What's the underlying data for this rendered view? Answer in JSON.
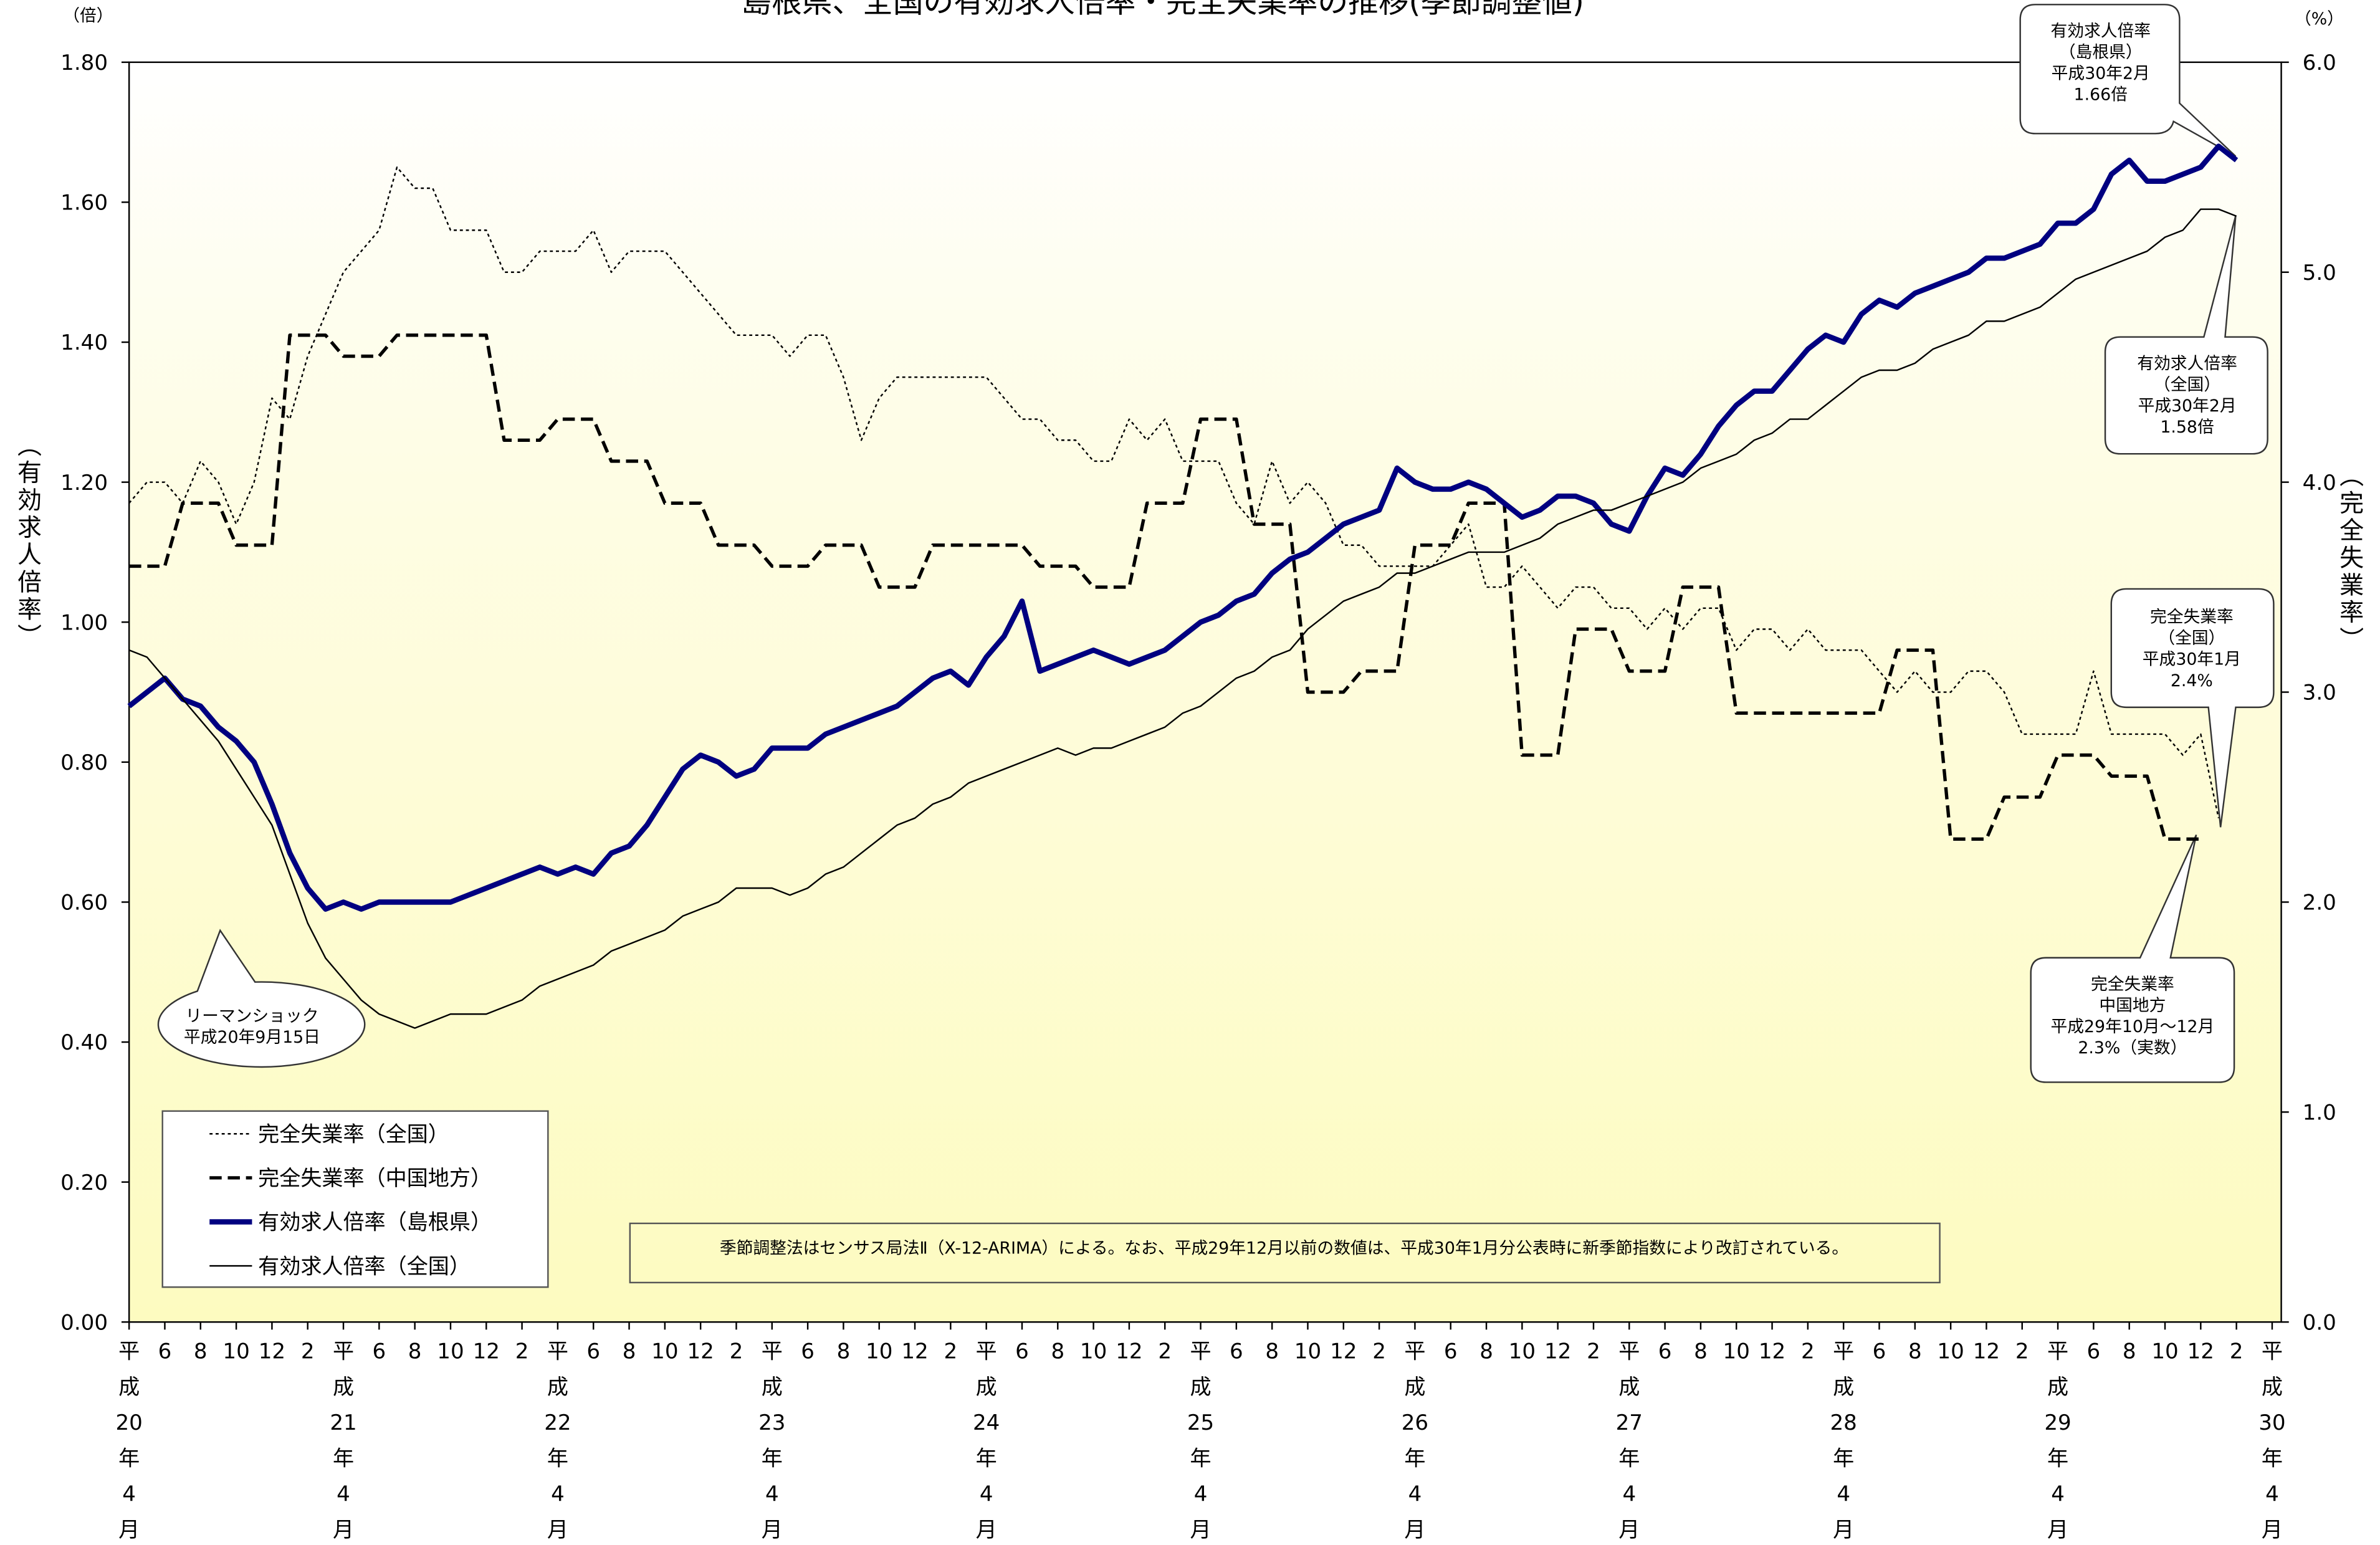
{
  "chart_data": {
    "type": "line",
    "title": "島根県、全国の有効求人倍率・完全失業率の推移(季節調整値)",
    "y_unit": "（倍）",
    "y2_unit": "（%）",
    "ylabel": "（有効求人倍率）",
    "y2label": "（完全失業率）",
    "note": "季節調整法はセンサス局法Ⅱ（X-12-ARIMA）による。なお、平成29年12月以前の数値は、平成30年1月分公表時に新季節指数により改訂されている。",
    "annotations": [
      {
        "lines": [
          "有効求人倍率",
          "（島根県）",
          "平成30年2月",
          "1.66倍"
        ]
      },
      {
        "lines": [
          "有効求人倍率",
          "（全国）",
          "平成30年2月",
          "1.58倍"
        ]
      },
      {
        "lines": [
          "完全失業率",
          "（全国）",
          "平成30年1月",
          "2.4%"
        ]
      },
      {
        "lines": [
          "完全失業率",
          "中国地方",
          "平成29年10月～12月",
          "2.3%（実数）"
        ]
      },
      {
        "lines": [
          "リーマンショック",
          "平成20年9月15日"
        ]
      }
    ],
    "categories": [
      "平成20年4月",
      null,
      "6",
      null,
      "8",
      null,
      "10",
      null,
      "12",
      null,
      "2",
      null,
      "平成21年4月",
      null,
      "6",
      null,
      "8",
      null,
      "10",
      null,
      "12",
      null,
      "2",
      null,
      "平成22年4月",
      null,
      "6",
      null,
      "8",
      null,
      "10",
      null,
      "12",
      null,
      "2",
      null,
      "平成23年4月",
      null,
      "6",
      null,
      "8",
      null,
      "10",
      null,
      "12",
      null,
      "2",
      null,
      "平成24年4月",
      null,
      "6",
      null,
      "8",
      null,
      "10",
      null,
      "12",
      null,
      "2",
      null,
      "平成25年4月",
      null,
      "6",
      null,
      "8",
      null,
      "10",
      null,
      "12",
      null,
      "2",
      null,
      "平成26年4月",
      null,
      "6",
      null,
      "8",
      null,
      "10",
      null,
      "12",
      null,
      "2",
      null,
      "平成27年4月",
      null,
      "6",
      null,
      "8",
      null,
      "10",
      null,
      "12",
      null,
      "2",
      null,
      "平成28年4月",
      null,
      "6",
      null,
      "8",
      null,
      "10",
      null,
      "12",
      null,
      "2",
      null,
      "平成29年4月",
      null,
      "6",
      null,
      "8",
      null,
      "10",
      null,
      "12",
      null,
      "2",
      null,
      "平成30年4月"
    ],
    "ylim": [
      0,
      1.8
    ],
    "yticks": [
      {
        "value": 0,
        "label": "0.00"
      },
      {
        "value": 0.2,
        "label": "0.20"
      },
      {
        "value": 0.4,
        "label": "0.40"
      },
      {
        "value": 0.6,
        "label": "0.60"
      },
      {
        "value": 0.8,
        "label": "0.80"
      },
      {
        "value": 1.0,
        "label": "1.00"
      },
      {
        "value": 1.2,
        "label": "1.20"
      },
      {
        "value": 1.4,
        "label": "1.40"
      },
      {
        "value": 1.6,
        "label": "1.60"
      },
      {
        "value": 1.8,
        "label": "1.80"
      }
    ],
    "y2lim": [
      0,
      6
    ],
    "y2ticks": [
      {
        "value": 0,
        "label": "0.0"
      },
      {
        "value": 1,
        "label": "1.0"
      },
      {
        "value": 2,
        "label": "2.0"
      },
      {
        "value": 3,
        "label": "3.0"
      },
      {
        "value": 4,
        "label": "4.0"
      },
      {
        "value": 5,
        "label": "5.0"
      },
      {
        "value": 6,
        "label": "6.0"
      }
    ],
    "grid": "x-yearly",
    "legend": "lower left",
    "series": [
      {
        "name": "完全失業率（全国）",
        "color": "#000000",
        "style": "dotted",
        "axis": "y2",
        "values": [
          3.9,
          4.0,
          4.0,
          3.9,
          4.1,
          4.0,
          3.8,
          4.0,
          4.4,
          4.3,
          4.6,
          4.8,
          5.0,
          5.1,
          5.2,
          5.5,
          5.4,
          5.4,
          5.2,
          5.2,
          5.2,
          5.0,
          5.0,
          5.1,
          5.1,
          5.1,
          5.2,
          5.0,
          5.1,
          5.1,
          5.1,
          5.0,
          4.9,
          4.8,
          4.7,
          4.7,
          4.7,
          4.6,
          4.7,
          4.7,
          4.5,
          4.2,
          4.4,
          4.5,
          4.5,
          4.5,
          4.5,
          4.5,
          4.5,
          4.4,
          4.3,
          4.3,
          4.2,
          4.2,
          4.1,
          4.1,
          4.3,
          4.2,
          4.3,
          4.1,
          4.1,
          4.1,
          3.9,
          3.8,
          4.1,
          3.9,
          4.0,
          3.9,
          3.7,
          3.7,
          3.6,
          3.6,
          3.6,
          3.6,
          3.7,
          3.8,
          3.5,
          3.5,
          3.6,
          3.5,
          3.4,
          3.5,
          3.5,
          3.4,
          3.4,
          3.3,
          3.4,
          3.3,
          3.4,
          3.4,
          3.2,
          3.3,
          3.3,
          3.2,
          3.3,
          3.2,
          3.2,
          3.2,
          3.1,
          3.0,
          3.1,
          3.0,
          3.0,
          3.1,
          3.1,
          3.0,
          2.8,
          2.8,
          2.8,
          2.8,
          3.1,
          2.8,
          2.8,
          2.8,
          2.8,
          2.7,
          2.8,
          2.4,
          null,
          null,
          null
        ]
      },
      {
        "name": "完全失業率（中国地方）",
        "color": "#000000",
        "style": "dashed",
        "axis": "y2",
        "values": [
          3.6,
          3.6,
          3.6,
          3.9,
          3.9,
          3.9,
          3.7,
          3.7,
          3.7,
          4.7,
          4.7,
          4.7,
          4.6,
          4.6,
          4.6,
          4.7,
          4.7,
          4.7,
          4.7,
          4.7,
          4.7,
          4.2,
          4.2,
          4.2,
          4.3,
          4.3,
          4.3,
          4.1,
          4.1,
          4.1,
          3.9,
          3.9,
          3.9,
          3.7,
          3.7,
          3.7,
          3.6,
          3.6,
          3.6,
          3.7,
          3.7,
          3.7,
          3.5,
          3.5,
          3.5,
          3.7,
          3.7,
          3.7,
          3.7,
          3.7,
          3.7,
          3.6,
          3.6,
          3.6,
          3.5,
          3.5,
          3.5,
          3.9,
          3.9,
          3.9,
          4.3,
          4.3,
          4.3,
          3.8,
          3.8,
          3.8,
          3.0,
          3.0,
          3.0,
          3.1,
          3.1,
          3.1,
          3.7,
          3.7,
          3.7,
          3.9,
          3.9,
          3.9,
          2.7,
          2.7,
          2.7,
          3.3,
          3.3,
          3.3,
          3.1,
          3.1,
          3.1,
          3.5,
          3.5,
          3.5,
          2.9,
          2.9,
          2.9,
          2.9,
          2.9,
          2.9,
          2.9,
          2.9,
          2.9,
          3.2,
          3.2,
          3.2,
          2.3,
          2.3,
          2.3,
          2.5,
          2.5,
          2.5,
          2.7,
          2.7,
          2.7,
          2.6,
          2.6,
          2.6,
          2.3,
          2.3,
          2.3,
          null,
          null,
          null,
          null
        ]
      },
      {
        "name": "有効求人倍率（島根県）",
        "color": "#000080",
        "style": "bold",
        "axis": "y",
        "values": [
          0.88,
          0.9,
          0.92,
          0.89,
          0.88,
          0.85,
          0.83,
          0.8,
          0.74,
          0.67,
          0.62,
          0.59,
          0.6,
          0.59,
          0.6,
          0.6,
          0.6,
          0.6,
          0.6,
          0.61,
          0.62,
          0.63,
          0.64,
          0.65,
          0.64,
          0.65,
          0.64,
          0.67,
          0.68,
          0.71,
          0.75,
          0.79,
          0.81,
          0.8,
          0.78,
          0.79,
          0.82,
          0.82,
          0.82,
          0.84,
          0.85,
          0.86,
          0.87,
          0.88,
          0.9,
          0.92,
          0.93,
          0.91,
          0.95,
          0.98,
          1.03,
          0.93,
          0.94,
          0.95,
          0.96,
          0.95,
          0.94,
          0.95,
          0.96,
          0.98,
          1.0,
          1.01,
          1.03,
          1.04,
          1.07,
          1.09,
          1.1,
          1.12,
          1.14,
          1.15,
          1.16,
          1.22,
          1.2,
          1.19,
          1.19,
          1.2,
          1.19,
          1.17,
          1.15,
          1.16,
          1.18,
          1.18,
          1.17,
          1.14,
          1.13,
          1.18,
          1.22,
          1.21,
          1.24,
          1.28,
          1.31,
          1.33,
          1.33,
          1.36,
          1.39,
          1.41,
          1.4,
          1.44,
          1.46,
          1.45,
          1.47,
          1.48,
          1.49,
          1.5,
          1.52,
          1.52,
          1.53,
          1.54,
          1.57,
          1.57,
          1.59,
          1.64,
          1.66,
          1.63,
          1.63,
          1.64,
          1.65,
          1.68,
          1.66,
          null,
          null
        ]
      },
      {
        "name": "有効求人倍率（全国）",
        "color": "#000000",
        "style": "thin",
        "axis": "y",
        "values": [
          0.96,
          0.95,
          0.92,
          0.89,
          0.86,
          0.83,
          0.79,
          0.75,
          0.71,
          0.64,
          0.57,
          0.52,
          0.49,
          0.46,
          0.44,
          0.43,
          0.42,
          0.43,
          0.44,
          0.44,
          0.44,
          0.45,
          0.46,
          0.48,
          0.49,
          0.5,
          0.51,
          0.53,
          0.54,
          0.55,
          0.56,
          0.58,
          0.59,
          0.6,
          0.62,
          0.62,
          0.62,
          0.61,
          0.62,
          0.64,
          0.65,
          0.67,
          0.69,
          0.71,
          0.72,
          0.74,
          0.75,
          0.77,
          0.78,
          0.79,
          0.8,
          0.81,
          0.82,
          0.81,
          0.82,
          0.82,
          0.83,
          0.84,
          0.85,
          0.87,
          0.88,
          0.9,
          0.92,
          0.93,
          0.95,
          0.96,
          0.99,
          1.01,
          1.03,
          1.04,
          1.05,
          1.07,
          1.07,
          1.08,
          1.09,
          1.1,
          1.1,
          1.1,
          1.11,
          1.12,
          1.14,
          1.15,
          1.16,
          1.16,
          1.17,
          1.18,
          1.19,
          1.2,
          1.22,
          1.23,
          1.24,
          1.26,
          1.27,
          1.29,
          1.29,
          1.31,
          1.33,
          1.35,
          1.36,
          1.36,
          1.37,
          1.39,
          1.4,
          1.41,
          1.43,
          1.43,
          1.44,
          1.45,
          1.47,
          1.49,
          1.5,
          1.51,
          1.52,
          1.53,
          1.55,
          1.56,
          1.59,
          1.59,
          1.58,
          null,
          null
        ]
      }
    ]
  }
}
